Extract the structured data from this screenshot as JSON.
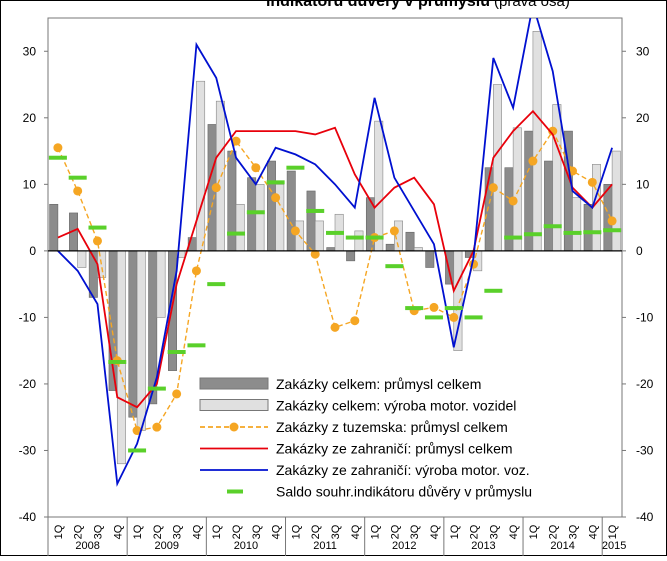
{
  "chart_data": {
    "type": "combo",
    "title": "indikátoru důvěry v průmyslu",
    "title_note": "(pravá osa)",
    "categories": [
      "1Q",
      "2Q",
      "3Q",
      "4Q",
      "1Q",
      "2Q",
      "3Q",
      "4Q",
      "1Q",
      "2Q",
      "3Q",
      "4Q",
      "1Q",
      "2Q",
      "3Q",
      "4Q",
      "1Q",
      "2Q",
      "3Q",
      "4Q",
      "1Q",
      "2Q",
      "3Q",
      "4Q",
      "1Q",
      "2Q",
      "3Q",
      "4Q",
      "1Q"
    ],
    "years": [
      "2008",
      "2009",
      "2010",
      "2011",
      "2012",
      "2013",
      "2014",
      "2015"
    ],
    "ylim": [
      -40,
      35
    ],
    "yticks": [
      -40,
      -30,
      -20,
      -10,
      0,
      10,
      20,
      30
    ],
    "y2lim": [
      -40,
      35
    ],
    "y2ticks": [
      -40,
      -30,
      -20,
      -10,
      0,
      10,
      20,
      30
    ],
    "series": [
      {
        "name": "Zakázky celkem: průmysl celkem",
        "kind": "bar",
        "color": "#8c8c8c",
        "values": [
          7,
          5.7,
          -7,
          -21,
          -25,
          -23,
          -18,
          2,
          19,
          15,
          11,
          13.5,
          12,
          9,
          0.5,
          -1.5,
          8,
          1,
          2.8,
          -2.5,
          -5,
          -1,
          12.5,
          12.5,
          18,
          13.5,
          18,
          7,
          10
        ]
      },
      {
        "name": "Zakázky celkem: výroba motor. vozidel",
        "kind": "bar",
        "color": "#e0e0e0",
        "values": [
          0,
          -2.5,
          -4,
          -32,
          -27,
          -10,
          -1,
          25.5,
          22.5,
          7,
          10,
          10,
          4.5,
          4.5,
          5.5,
          3,
          19.5,
          4.5,
          0.5,
          0,
          -15,
          -3,
          25,
          18.5,
          33,
          22,
          8,
          13,
          15
        ]
      },
      {
        "name": "Zakázky z tuzemska: průmysl celkem",
        "kind": "dots",
        "color": "#f5a623",
        "values": [
          15.5,
          9,
          1.5,
          -16.5,
          -27,
          -26.5,
          -21.5,
          -3,
          9.5,
          16.5,
          12.5,
          8,
          3,
          -0.5,
          -11.5,
          -10.5,
          2,
          3,
          -9,
          -8.5,
          -10,
          -2,
          9.5,
          7.5,
          13.5,
          18,
          12,
          10.3,
          4.5
        ]
      },
      {
        "name": "Zakázky ze zahraničí:  průmysl celkem",
        "kind": "line",
        "color": "#e8000b",
        "values": [
          2,
          3.3,
          -2,
          -22,
          -23.5,
          -20,
          -5,
          4.5,
          14,
          18,
          18,
          18,
          18,
          17.5,
          18.5,
          11.5,
          6.5,
          9.5,
          11,
          7,
          -6,
          0,
          14,
          18,
          21,
          17.5,
          9.5,
          6.5,
          10
        ]
      },
      {
        "name": "Zakázky ze zahraničí:  výroba motor. voz.",
        "kind": "line",
        "color": "#0010d0",
        "values": [
          0,
          -3,
          -8,
          -35,
          -29,
          -19,
          -3,
          31,
          26,
          14,
          10,
          15.5,
          14.5,
          13,
          10,
          6.5,
          23,
          11,
          6,
          1,
          -14.5,
          -1,
          29,
          21.5,
          37,
          27,
          9,
          6.5,
          15.5
        ]
      },
      {
        "name": "Saldo souhr.indikátoru důvěry v průmyslu",
        "kind": "dash",
        "axis": "y2",
        "color": "#5ad02a",
        "values": [
          14,
          11,
          3.5,
          -16.7,
          -30,
          -20.7,
          -15.2,
          -14.2,
          -5,
          2.6,
          5.8,
          10.3,
          12.5,
          6,
          2.7,
          2,
          2,
          -2.3,
          -8.6,
          -10,
          -8.6,
          -10,
          -6,
          2,
          2.5,
          3.7,
          2.7,
          2.8,
          3.1
        ]
      }
    ]
  }
}
